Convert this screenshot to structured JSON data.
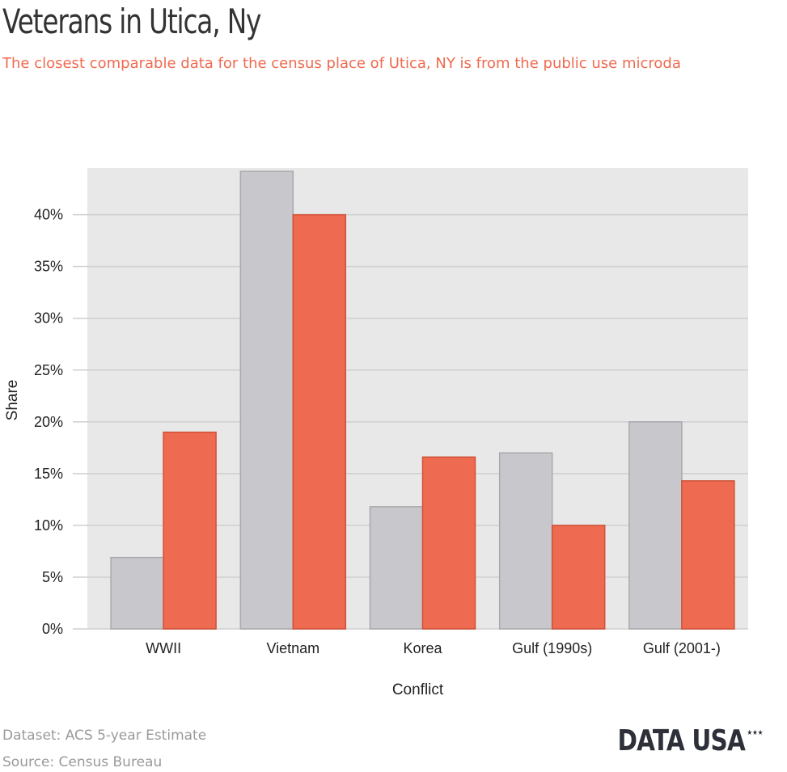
{
  "page": {
    "title": "Veterans in Utica, Ny",
    "subtitle": "The closest comparable data for the census place of Utica, NY is from the public use microda"
  },
  "footer": {
    "dataset": "Dataset: ACS 5-year Estimate",
    "source": "Source: Census Bureau",
    "logo_text": "DATA USA",
    "logo_stars": "★★★"
  },
  "colors": {
    "series_gray": "#c8c8cc",
    "series_gray_stroke": "#a9a9ad",
    "series_red": "#ee6a50",
    "series_red_stroke": "#cf5238",
    "plot_background": "#e8e8e8",
    "grid": "#cfcfcf"
  },
  "chart_data": {
    "type": "bar",
    "xlabel": "Conflict",
    "ylabel": "Share",
    "categories": [
      "WWII",
      "Vietnam",
      "Korea",
      "Gulf (1990s)",
      "Gulf (2001-)"
    ],
    "series": [
      {
        "values": [
          6.9,
          44.2,
          11.8,
          17.0,
          20.0
        ]
      },
      {
        "values": [
          19.0,
          40.0,
          16.6,
          10.0,
          14.3
        ]
      }
    ],
    "ylim": [
      0,
      44.5
    ],
    "yticks": [
      0,
      5,
      10,
      15,
      20,
      25,
      30,
      35,
      40
    ],
    "ytick_suffix": "%",
    "grid": true,
    "legend": "none"
  }
}
